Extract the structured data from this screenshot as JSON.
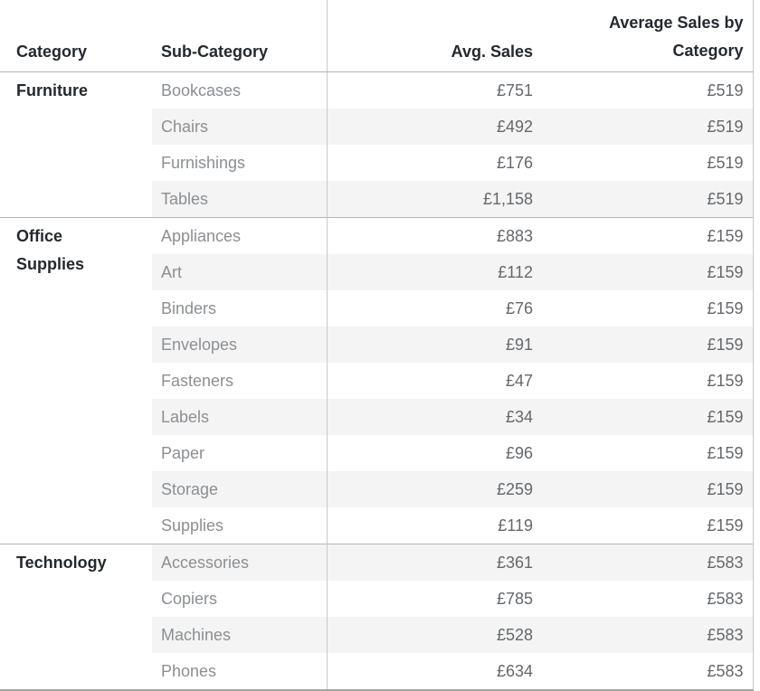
{
  "colors": {
    "band": "#f4f4f4",
    "row_background": "#ffffff",
    "header_text": "#24292e",
    "category_text": "#24292e",
    "subcategory_text": "#8b8f93",
    "value_text": "#64686c",
    "horizontal_line": "#b4b4b4",
    "vertical_line": "#c9c9c9",
    "bottom_line": "#a6a6a6"
  },
  "table": {
    "columns": [
      {
        "label": "Category"
      },
      {
        "label": "Sub-Category"
      },
      {
        "label": "Avg. Sales"
      },
      {
        "label": "Average Sales by Category"
      }
    ],
    "groups": [
      {
        "category": "Furniture",
        "rows": [
          {
            "sub_category": "Bookcases",
            "avg_sales": "£751",
            "category_avg": "£519"
          },
          {
            "sub_category": "Chairs",
            "avg_sales": "£492",
            "category_avg": "£519"
          },
          {
            "sub_category": "Furnishings",
            "avg_sales": "£176",
            "category_avg": "£519"
          },
          {
            "sub_category": "Tables",
            "avg_sales": "£1,158",
            "category_avg": "£519"
          }
        ]
      },
      {
        "category": "Office Supplies",
        "rows": [
          {
            "sub_category": "Appliances",
            "avg_sales": "£883",
            "category_avg": "£159"
          },
          {
            "sub_category": "Art",
            "avg_sales": "£112",
            "category_avg": "£159"
          },
          {
            "sub_category": "Binders",
            "avg_sales": "£76",
            "category_avg": "£159"
          },
          {
            "sub_category": "Envelopes",
            "avg_sales": "£91",
            "category_avg": "£159"
          },
          {
            "sub_category": "Fasteners",
            "avg_sales": "£47",
            "category_avg": "£159"
          },
          {
            "sub_category": "Labels",
            "avg_sales": "£34",
            "category_avg": "£159"
          },
          {
            "sub_category": "Paper",
            "avg_sales": "£96",
            "category_avg": "£159"
          },
          {
            "sub_category": "Storage",
            "avg_sales": "£259",
            "category_avg": "£159"
          },
          {
            "sub_category": "Supplies",
            "avg_sales": "£119",
            "category_avg": "£159"
          }
        ]
      },
      {
        "category": "Technology",
        "rows": [
          {
            "sub_category": "Accessories",
            "avg_sales": "£361",
            "category_avg": "£583"
          },
          {
            "sub_category": "Copiers",
            "avg_sales": "£785",
            "category_avg": "£583"
          },
          {
            "sub_category": "Machines",
            "avg_sales": "£528",
            "category_avg": "£583"
          },
          {
            "sub_category": "Phones",
            "avg_sales": "£634",
            "category_avg": "£583"
          }
        ]
      }
    ]
  },
  "chart_data": {
    "type": "table",
    "title": "",
    "columns": [
      "Category",
      "Sub-Category",
      "Avg. Sales",
      "Average Sales by Category"
    ],
    "currency": "GBP (£)",
    "rows": [
      [
        "Furniture",
        "Bookcases",
        751,
        519
      ],
      [
        "Furniture",
        "Chairs",
        492,
        519
      ],
      [
        "Furniture",
        "Furnishings",
        176,
        519
      ],
      [
        "Furniture",
        "Tables",
        1158,
        519
      ],
      [
        "Office Supplies",
        "Appliances",
        883,
        159
      ],
      [
        "Office Supplies",
        "Art",
        112,
        159
      ],
      [
        "Office Supplies",
        "Binders",
        76,
        159
      ],
      [
        "Office Supplies",
        "Envelopes",
        91,
        159
      ],
      [
        "Office Supplies",
        "Fasteners",
        47,
        159
      ],
      [
        "Office Supplies",
        "Labels",
        34,
        159
      ],
      [
        "Office Supplies",
        "Paper",
        96,
        159
      ],
      [
        "Office Supplies",
        "Storage",
        259,
        159
      ],
      [
        "Office Supplies",
        "Supplies",
        119,
        159
      ],
      [
        "Technology",
        "Accessories",
        361,
        583
      ],
      [
        "Technology",
        "Copiers",
        785,
        583
      ],
      [
        "Technology",
        "Machines",
        528,
        583
      ],
      [
        "Technology",
        "Phones",
        634,
        583
      ]
    ],
    "layout": {
      "row_banding": true,
      "group_separators": true,
      "values_align": "right"
    }
  }
}
